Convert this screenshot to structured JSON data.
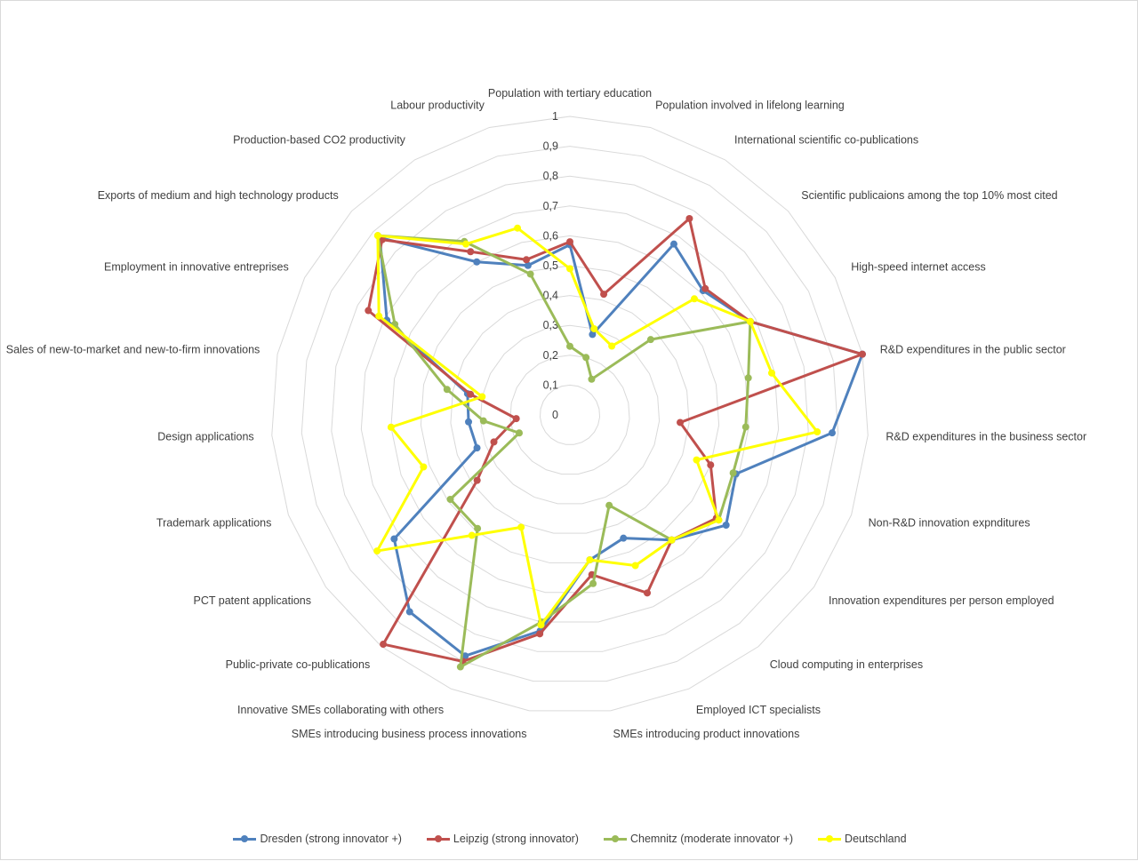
{
  "chart_data": {
    "type": "radar",
    "title": "",
    "axes": [
      "Population with tertiary education",
      "Population involved in lifelong learning",
      "International scientific co-publications",
      "Scientific publicaions among the top 10% most cited",
      "High-speed internet access",
      "R&D expenditures in the public sector",
      "R&D expenditures in the business sector",
      "Non-R&D innovation expnditures",
      "Innovation expenditures per person employed",
      "Cloud computing in enterprises",
      "Employed ICT specialists",
      "SMEs introducing product innovations",
      "SMEs introducing business process innovations",
      "Innovative SMEs collaborating with others",
      "Public-private co-publications",
      "PCT patent applications",
      "Trademark applications",
      "Design applications",
      "Sales of new-to-market and new-to-firm innovations",
      "Employment in innovative entreprises",
      "Exports of medium and high technology products",
      "Production-based CO2 productivity",
      "Labour productivity"
    ],
    "rlim": [
      0,
      1
    ],
    "ticks": [
      "0",
      "0,1",
      "0,2",
      "0,3",
      "0,4",
      "0,5",
      "0,6",
      "0,7",
      "0,8",
      "0,9",
      "1"
    ],
    "grid": true,
    "legend_position": "bottom",
    "series": [
      {
        "name": "Dresden (strong innovator +)",
        "color": "#4f81bd",
        "values": [
          0.57,
          0.28,
          0.67,
          0.61,
          0.68,
          1.0,
          0.88,
          0.59,
          0.64,
          0.54,
          0.45,
          0.49,
          0.73,
          0.88,
          0.85,
          0.72,
          0.33,
          0.34,
          0.35,
          0.69,
          0.87,
          0.6,
          0.52
        ]
      },
      {
        "name": "Leipzig (strong innovator)",
        "color": "#c0504d",
        "values": [
          0.58,
          0.42,
          0.77,
          0.62,
          0.68,
          1.0,
          0.37,
          0.5,
          0.6,
          0.54,
          0.65,
          0.54,
          0.74,
          0.9,
          0.99,
          0.38,
          0.27,
          0.18,
          0.34,
          0.76,
          0.86,
          0.64,
          0.54
        ]
      },
      {
        "name": "Chemnitz (moderate innovator +)",
        "color": "#9bbb59",
        "values": [
          0.23,
          0.2,
          0.14,
          0.37,
          0.68,
          0.61,
          0.59,
          0.58,
          0.61,
          0.54,
          0.33,
          0.57,
          0.7,
          0.92,
          0.49,
          0.49,
          0.18,
          0.29,
          0.42,
          0.66,
          0.88,
          0.68,
          0.49
        ]
      },
      {
        "name": "Deutschland",
        "color": "#ffff00",
        "values": [
          0.49,
          0.3,
          0.27,
          0.57,
          0.68,
          0.69,
          0.83,
          0.45,
          0.61,
          0.54,
          0.55,
          0.49,
          0.71,
          0.41,
          0.52,
          0.79,
          0.52,
          0.6,
          0.3,
          0.72,
          0.88,
          0.67,
          0.65
        ]
      }
    ]
  }
}
